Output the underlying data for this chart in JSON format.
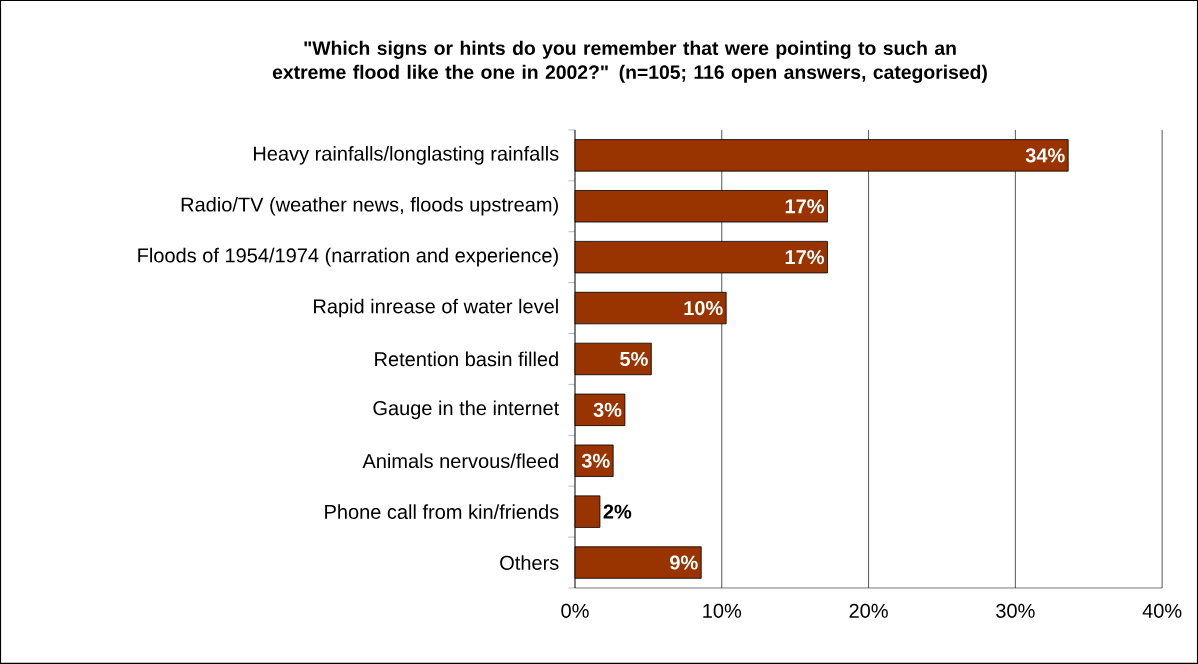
{
  "chart_data": {
    "type": "bar",
    "orientation": "horizontal",
    "title": "\"Which signs or hints do you remember that were pointing to such an extreme flood like the one in 2002?\" (n=105; 116 open answers, categorised)",
    "categories": [
      "Heavy rainfalls/longlasting rainfalls",
      "Radio/TV (weather news, floods upstream)",
      "Floods of 1954/1974 (narration and experience)",
      "Rapid inrease of water level",
      "Retention basin filled",
      "Gauge in the internet",
      "Animals nervous/fleed",
      "Phone call from kin/friends",
      "Others"
    ],
    "values": [
      33.6,
      17.2,
      17.2,
      10.3,
      5.2,
      3.4,
      2.6,
      1.7,
      8.6
    ],
    "value_labels": [
      "34%",
      "17%",
      "17%",
      "10%",
      "5%",
      "3%",
      "3%",
      "2%",
      "9%"
    ],
    "color": "#993300",
    "xlim": [
      0,
      40
    ],
    "xticks": [
      {
        "value": 0,
        "label": "0%"
      },
      {
        "value": 10,
        "label": "10%"
      },
      {
        "value": 20,
        "label": "20%"
      },
      {
        "value": 30,
        "label": "30%"
      },
      {
        "value": 40,
        "label": "40%"
      }
    ],
    "grid": "x"
  }
}
